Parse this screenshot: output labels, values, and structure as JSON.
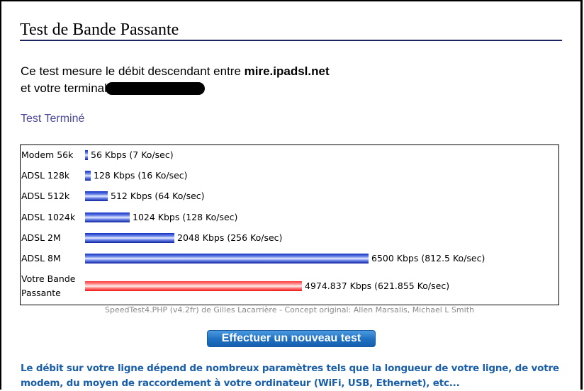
{
  "page": {
    "title": "Test de Bande Passante",
    "intro_line1": "Ce test mesure le débit descendant entre ",
    "host": "mire.ipadsl.net",
    "intro_line2": "et votre terminal",
    "status": "Test Terminé"
  },
  "chart_data": {
    "type": "bar",
    "orientation": "horizontal",
    "unit": "Kbps",
    "max": 6500,
    "rows": [
      {
        "label": "Modem 56k",
        "value": 56,
        "text": "56 Kbps (7 Ko/sec)",
        "color": "blue"
      },
      {
        "label": "ADSL 128k",
        "value": 128,
        "text": "128 Kbps (16 Ko/sec)",
        "color": "blue"
      },
      {
        "label": "ADSL 512k",
        "value": 512,
        "text": "512 Kbps (64 Ko/sec)",
        "color": "blue"
      },
      {
        "label": "ADSL 1024k",
        "value": 1024,
        "text": "1024 Kbps (128 Ko/sec)",
        "color": "blue"
      },
      {
        "label": "ADSL 2M",
        "value": 2048,
        "text": "2048 Kbps (256 Ko/sec)",
        "color": "blue"
      },
      {
        "label": "ADSL 8M",
        "value": 6500,
        "text": "6500 Kbps (812.5 Ko/sec)",
        "color": "blue"
      },
      {
        "label": "Votre Bande Passante",
        "value": 4974.837,
        "text": "4974.837 Kbps (621.855 Ko/sec)",
        "color": "red"
      }
    ]
  },
  "credit": "SpeedTest4.PHP (v4.2fr) de Gilles Lacarrière - Concept original: Allen Marsalis, Michael L Smith",
  "button_label": "Effectuer un nouveau test",
  "note": "Le débit sur votre ligne dépend de nombreux paramètres tels que la longueur de votre ligne, de votre modem, du moyen de raccordement à votre ordinateur (WiFi, USB, Ethernet), etc..."
}
